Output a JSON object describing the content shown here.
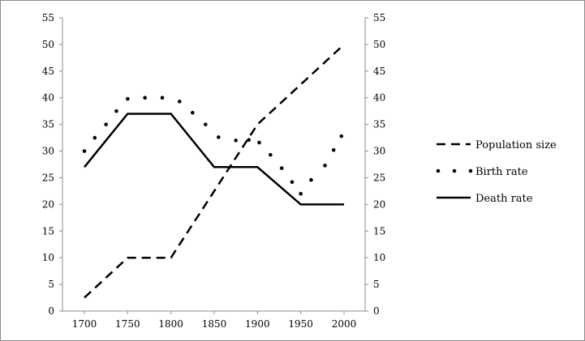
{
  "chart_data": {
    "type": "line",
    "title": "",
    "xlabel": "",
    "ylabel": "",
    "x_ticks": [
      "1700",
      "1750",
      "1800",
      "1850",
      "1900",
      "1950",
      "2000"
    ],
    "y_ticks": [
      "0",
      "5",
      "10",
      "15",
      "20",
      "25",
      "30",
      "35",
      "40",
      "45",
      "50",
      "55"
    ],
    "xlim": [
      1700,
      2000
    ],
    "ylim": [
      0,
      55
    ],
    "grid": false,
    "legend_position": "right",
    "series": [
      {
        "name": "Population size",
        "style": "dashed",
        "color": "#000000",
        "points": [
          [
            1700,
            2.5
          ],
          [
            1750,
            10
          ],
          [
            1800,
            10
          ],
          [
            1850,
            22.5
          ],
          [
            1900,
            35
          ],
          [
            1950,
            42.5
          ],
          [
            2000,
            50
          ]
        ]
      },
      {
        "name": "Birth rate",
        "style": "dotted",
        "color": "#000000",
        "points": [
          [
            1700,
            30
          ],
          [
            1712,
            32.5
          ],
          [
            1725,
            35
          ],
          [
            1737,
            37.5
          ],
          [
            1750,
            39.8
          ],
          [
            1770,
            40
          ],
          [
            1790,
            40
          ],
          [
            1810,
            39.3
          ],
          [
            1825,
            37.2
          ],
          [
            1840,
            35
          ],
          [
            1855,
            32.6
          ],
          [
            1875,
            32
          ],
          [
            1890,
            32.1
          ],
          [
            1902,
            31.6
          ],
          [
            1915,
            29.3
          ],
          [
            1928,
            26.8
          ],
          [
            1940,
            24.2
          ],
          [
            1950,
            22
          ],
          [
            1962,
            24.6
          ],
          [
            1978,
            27.3
          ],
          [
            1988,
            30.2
          ],
          [
            1997,
            32.8
          ]
        ]
      },
      {
        "name": "Death rate",
        "style": "solid",
        "color": "#000000",
        "points": [
          [
            1700,
            27
          ],
          [
            1750,
            37
          ],
          [
            1800,
            37
          ],
          [
            1850,
            27
          ],
          [
            1900,
            27
          ],
          [
            1950,
            20
          ],
          [
            2000,
            20
          ]
        ]
      }
    ]
  }
}
